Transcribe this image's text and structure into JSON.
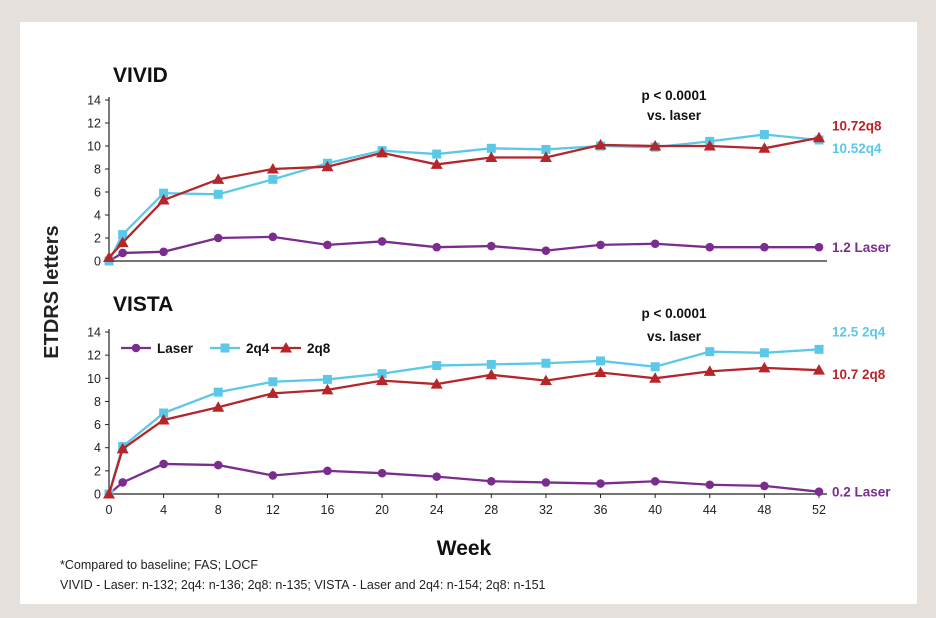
{
  "colors": {
    "laser": "#7b2d8e",
    "q4": "#5bc8e8",
    "q8": "#b5262b",
    "axis": "#222222"
  },
  "y_axis_label": "ETDRS letters",
  "x_axis_label": "Week",
  "footnotes": {
    "line1": "*Compared to baseline; FAS; LOCF",
    "line2": "VIVID - Laser: n-132; 2q4: n-136; 2q8: n-135; VISTA - Laser and 2q4: n-154; 2q8: n-151"
  },
  "chart_data": [
    {
      "type": "line",
      "title": "VIVID",
      "annotation": [
        "p < 0.0001",
        "vs. laser"
      ],
      "ylim": [
        0,
        14
      ],
      "yticks": [
        0,
        2,
        4,
        6,
        8,
        10,
        12,
        14
      ],
      "xlim": [
        0,
        52
      ],
      "xticks": [],
      "xlabel": "",
      "ylabel": "ETDRS letters",
      "legend": [],
      "series": [
        {
          "key": "laser",
          "name": "Laser",
          "marker": "circle",
          "x": [
            0,
            1,
            4,
            8,
            12,
            16,
            20,
            24,
            28,
            32,
            36,
            40,
            44,
            48,
            52
          ],
          "y": [
            0,
            0.7,
            0.8,
            2.0,
            2.1,
            1.4,
            1.7,
            1.2,
            1.3,
            0.9,
            1.4,
            1.5,
            1.2,
            1.2,
            1.2
          ],
          "end_label": "1.2 Laser"
        },
        {
          "key": "q4",
          "name": "2q4",
          "marker": "square",
          "x": [
            0,
            1,
            4,
            8,
            12,
            16,
            20,
            24,
            28,
            32,
            36,
            40,
            44,
            48,
            52
          ],
          "y": [
            0,
            2.3,
            5.9,
            5.8,
            7.1,
            8.5,
            9.6,
            9.3,
            9.8,
            9.7,
            10.0,
            9.9,
            10.4,
            11.0,
            10.52
          ],
          "end_label": "10.52q4"
        },
        {
          "key": "q8",
          "name": "2q8",
          "marker": "triangle",
          "x": [
            0,
            1,
            4,
            8,
            12,
            16,
            20,
            24,
            28,
            32,
            36,
            40,
            44,
            48,
            52
          ],
          "y": [
            0.3,
            1.6,
            5.3,
            7.1,
            8.0,
            8.2,
            9.4,
            8.4,
            9.0,
            9.0,
            10.1,
            10.0,
            10.0,
            9.8,
            10.72
          ],
          "end_label": "10.72q8"
        }
      ]
    },
    {
      "type": "line",
      "title": "VISTA",
      "annotation": [
        "p < 0.0001",
        "vs. laser"
      ],
      "ylim": [
        0,
        14
      ],
      "yticks": [
        0,
        2,
        4,
        6,
        8,
        10,
        12,
        14
      ],
      "xlim": [
        0,
        52
      ],
      "xticks": [
        0,
        4,
        8,
        12,
        16,
        20,
        24,
        28,
        32,
        36,
        40,
        44,
        48,
        52
      ],
      "xlabel": "Week",
      "ylabel": "ETDRS letters",
      "legend": [
        "Laser",
        "2q4",
        "2q8"
      ],
      "series": [
        {
          "key": "laser",
          "name": "Laser",
          "marker": "circle",
          "x": [
            0,
            1,
            4,
            8,
            12,
            16,
            20,
            24,
            28,
            32,
            36,
            40,
            44,
            48,
            52
          ],
          "y": [
            0,
            1.0,
            2.6,
            2.5,
            1.6,
            2.0,
            1.8,
            1.5,
            1.1,
            1.0,
            0.9,
            1.1,
            0.8,
            0.7,
            0.2
          ],
          "end_label": "0.2 Laser"
        },
        {
          "key": "q4",
          "name": "2q4",
          "marker": "square",
          "x": [
            0,
            1,
            4,
            8,
            12,
            16,
            20,
            24,
            28,
            32,
            36,
            40,
            44,
            48,
            52
          ],
          "y": [
            0,
            4.1,
            7.0,
            8.8,
            9.7,
            9.9,
            10.4,
            11.1,
            11.2,
            11.3,
            11.5,
            11.0,
            12.3,
            12.2,
            12.5
          ],
          "end_label": "12.5 2q4"
        },
        {
          "key": "q8",
          "name": "2q8",
          "marker": "triangle",
          "x": [
            0,
            1,
            4,
            8,
            12,
            16,
            20,
            24,
            28,
            32,
            36,
            40,
            44,
            48,
            52
          ],
          "y": [
            0,
            3.9,
            6.4,
            7.5,
            8.7,
            9.0,
            9.8,
            9.5,
            10.3,
            9.8,
            10.5,
            10.0,
            10.6,
            10.9,
            10.7
          ],
          "end_label": "10.7 2q8"
        }
      ]
    }
  ]
}
